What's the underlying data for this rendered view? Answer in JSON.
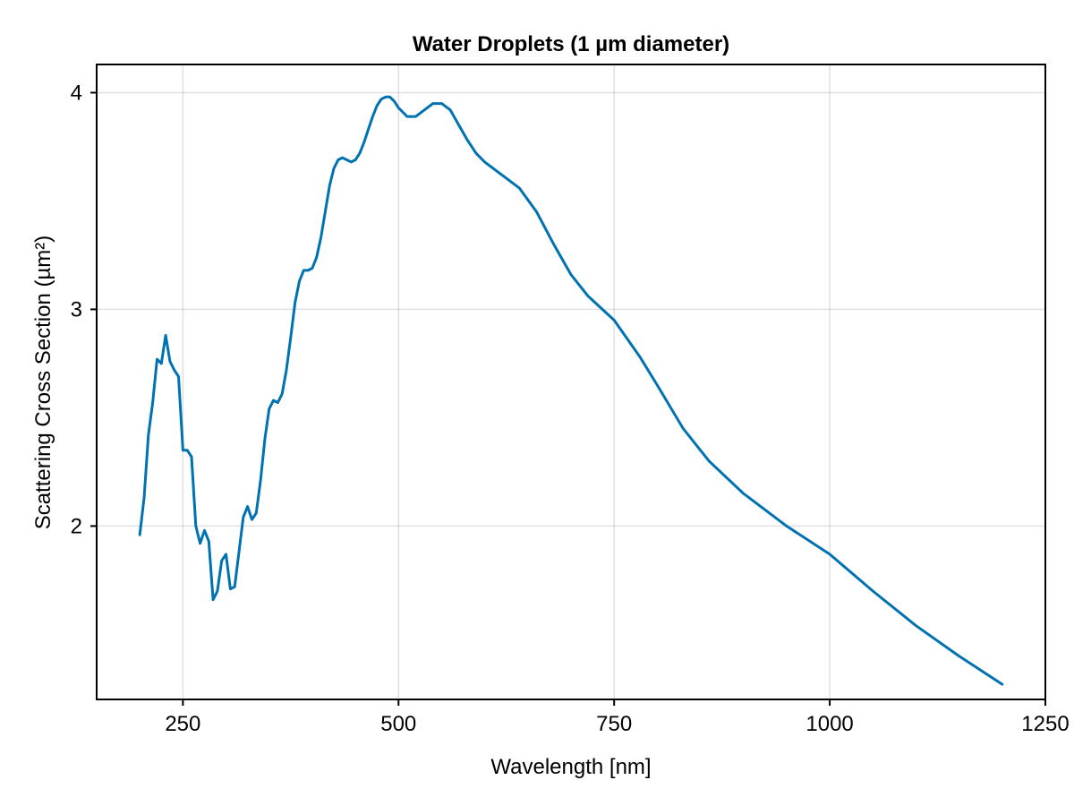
{
  "chart_data": {
    "type": "line",
    "title": "Water Droplets (1 µm diameter)",
    "xlabel": "Wavelength [nm]",
    "ylabel": "Scattering Cross Section (µm²)",
    "xlim": [
      150,
      1250
    ],
    "ylim": [
      1.2,
      4.13
    ],
    "xticks": [
      250,
      500,
      750,
      1000,
      1250
    ],
    "xtick_labels": [
      "250",
      "500",
      "750",
      "1000",
      "1250"
    ],
    "yticks": [
      2,
      3,
      4
    ],
    "ytick_labels": [
      "2",
      "3",
      "4"
    ],
    "grid": true,
    "legend": "none",
    "series": [
      {
        "color": "#0072b2",
        "x": [
          200,
          205,
          210,
          215,
          220,
          225,
          230,
          235,
          240,
          245,
          250,
          255,
          260,
          265,
          270,
          275,
          280,
          285,
          290,
          295,
          300,
          305,
          310,
          315,
          320,
          325,
          330,
          335,
          340,
          345,
          350,
          355,
          360,
          365,
          370,
          375,
          380,
          385,
          390,
          395,
          400,
          405,
          410,
          415,
          420,
          425,
          430,
          435,
          440,
          445,
          450,
          455,
          460,
          465,
          470,
          475,
          480,
          485,
          490,
          495,
          500,
          510,
          520,
          530,
          540,
          550,
          560,
          570,
          580,
          590,
          600,
          620,
          640,
          660,
          680,
          700,
          720,
          750,
          780,
          800,
          830,
          860,
          900,
          950,
          1000,
          1050,
          1100,
          1150,
          1200
        ],
        "y": [
          1.96,
          2.13,
          2.42,
          2.57,
          2.77,
          2.75,
          2.88,
          2.76,
          2.72,
          2.69,
          2.35,
          2.35,
          2.32,
          2.0,
          1.92,
          1.98,
          1.93,
          1.66,
          1.7,
          1.84,
          1.87,
          1.71,
          1.72,
          1.88,
          2.04,
          2.09,
          2.03,
          2.06,
          2.21,
          2.4,
          2.54,
          2.58,
          2.57,
          2.61,
          2.72,
          2.87,
          3.03,
          3.13,
          3.18,
          3.18,
          3.19,
          3.24,
          3.33,
          3.45,
          3.57,
          3.65,
          3.69,
          3.7,
          3.69,
          3.68,
          3.69,
          3.72,
          3.77,
          3.83,
          3.89,
          3.94,
          3.97,
          3.98,
          3.98,
          3.96,
          3.93,
          3.89,
          3.89,
          3.92,
          3.95,
          3.95,
          3.92,
          3.85,
          3.78,
          3.72,
          3.68,
          3.62,
          3.56,
          3.45,
          3.3,
          3.16,
          3.06,
          2.95,
          2.78,
          2.65,
          2.45,
          2.3,
          2.15,
          2.0,
          1.87,
          1.7,
          1.54,
          1.4,
          1.27
        ]
      }
    ]
  }
}
